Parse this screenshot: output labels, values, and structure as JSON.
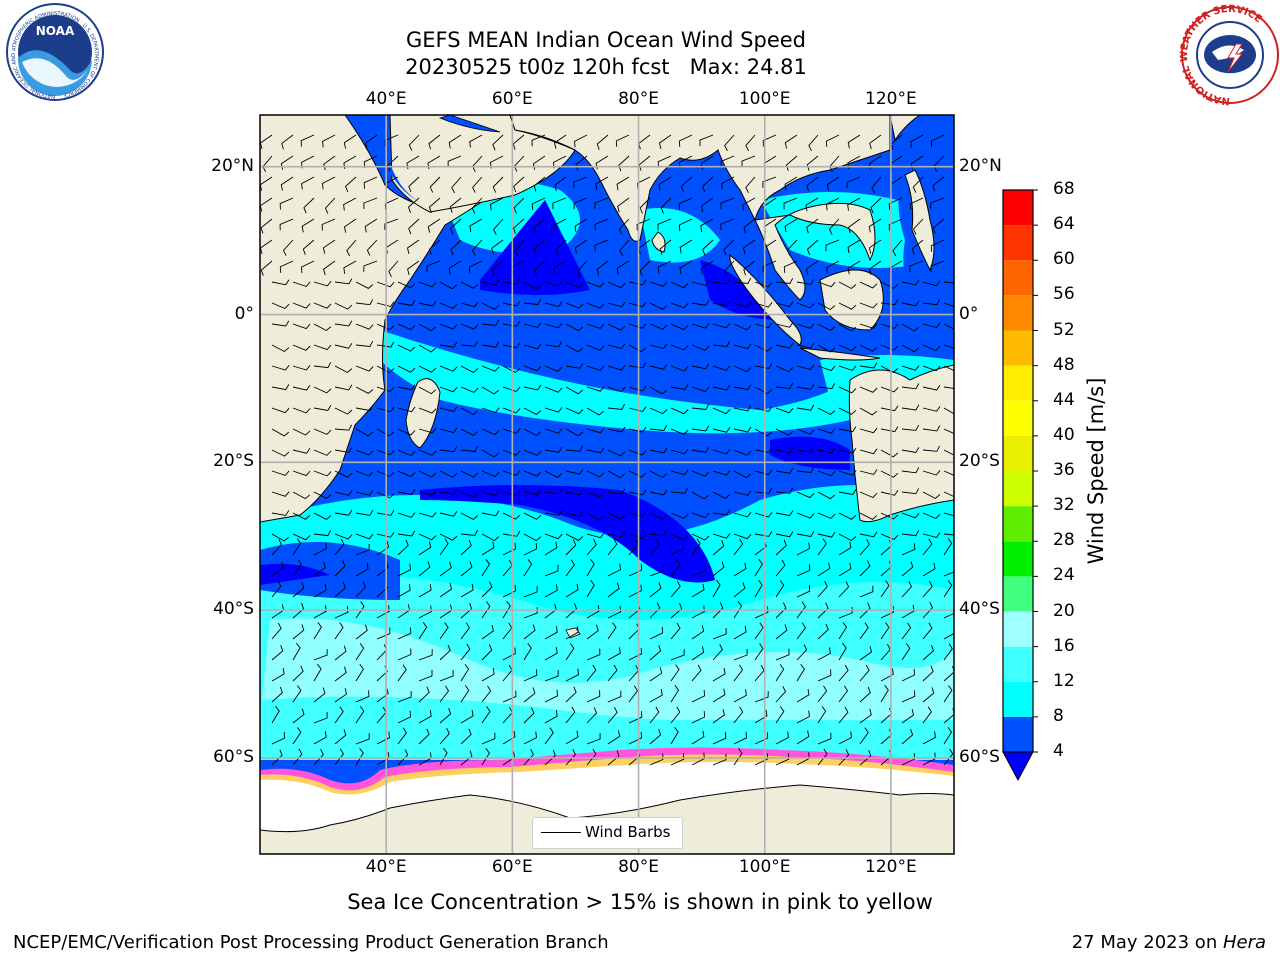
{
  "title": {
    "line1": "GEFS MEAN Indian Ocean Wind Speed",
    "line2": "20230525 t00z 120h fcst   Max: 24.81"
  },
  "logos": {
    "left_logo": "NOAA",
    "left_logo_ring_text": "NATIONAL OCEANIC AND ATMOSPHERIC ADMINISTRATION · U.S. DEPARTMENT OF COMMERCE",
    "right_logo_ring_text": "NATIONAL WEATHER SERVICE"
  },
  "map": {
    "lon_ticks": [
      "40°E",
      "60°E",
      "80°E",
      "100°E",
      "120°E"
    ],
    "lat_ticks": [
      "20°N",
      "0°",
      "20°S",
      "40°S",
      "60°S"
    ],
    "lon_range": [
      20,
      130
    ],
    "lat_range": [
      -73,
      27
    ],
    "grid": true,
    "land_color": "#efedd9",
    "ice_colors": [
      "#ff55dd",
      "#ffa0a0",
      "#ffd060"
    ]
  },
  "legend": {
    "label": "Wind Barbs"
  },
  "colorbar": {
    "label": "Wind Speed [m/s]",
    "ticks": [
      "68",
      "64",
      "60",
      "56",
      "52",
      "48",
      "44",
      "40",
      "36",
      "32",
      "28",
      "24",
      "20",
      "16",
      "12",
      "8",
      "4"
    ],
    "range": [
      4,
      68
    ],
    "bands": [
      {
        "from": 4,
        "to": 8,
        "color": "#0050ff"
      },
      {
        "from": 8,
        "to": 12,
        "color": "#00ffff"
      },
      {
        "from": 12,
        "to": 16,
        "color": "#40ffff"
      },
      {
        "from": 16,
        "to": 20,
        "color": "#a0ffff"
      },
      {
        "from": 20,
        "to": 24,
        "color": "#40ff80"
      },
      {
        "from": 24,
        "to": 28,
        "color": "#00ee00"
      },
      {
        "from": 28,
        "to": 32,
        "color": "#60ee00"
      },
      {
        "from": 32,
        "to": 36,
        "color": "#ccff00"
      },
      {
        "from": 36,
        "to": 40,
        "color": "#e8f000"
      },
      {
        "from": 40,
        "to": 44,
        "color": "#ffff00"
      },
      {
        "from": 44,
        "to": 48,
        "color": "#ffee00"
      },
      {
        "from": 48,
        "to": 52,
        "color": "#ffbb00"
      },
      {
        "from": 52,
        "to": 56,
        "color": "#ff8800"
      },
      {
        "from": 56,
        "to": 60,
        "color": "#ff6600"
      },
      {
        "from": 60,
        "to": 64,
        "color": "#ff3300"
      },
      {
        "from": 64,
        "to": 68,
        "color": "#ff0000"
      }
    ],
    "under_color": "#0000ff"
  },
  "caption": "Sea Ice Concentration > 15% is shown in pink to yellow",
  "footer": {
    "left": "NCEP/EMC/Verification Post Processing Product Generation Branch",
    "right_prefix": "27 May 2023 on ",
    "right_host": "Hera"
  }
}
